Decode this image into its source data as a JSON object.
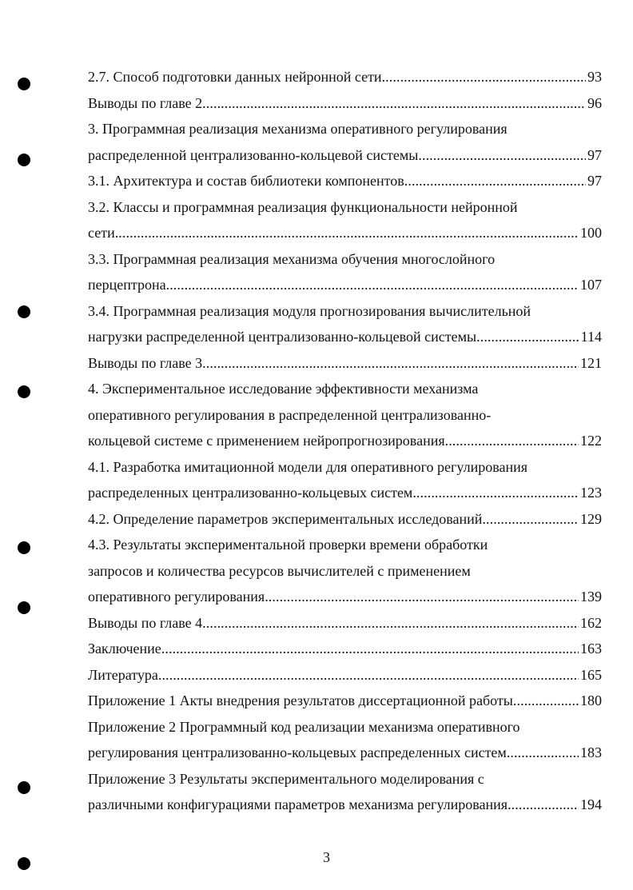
{
  "toc": [
    {
      "lines": [
        "2.7. Способ подготовки данных нейронной сети"
      ],
      "page": "93"
    },
    {
      "lines": [
        "Выводы по главе 2"
      ],
      "page": "96"
    },
    {
      "lines": [
        "3. Программная реализация механизма оперативного регулирования",
        "распределенной централизованно-кольцевой системы"
      ],
      "page": "97"
    },
    {
      "lines": [
        "3.1. Архитектура и состав библиотеки компонентов"
      ],
      "page": "97"
    },
    {
      "lines": [
        "3.2. Классы и программная реализация функциональности нейронной",
        "сети"
      ],
      "page": "100"
    },
    {
      "lines": [
        "3.3. Программная реализация механизма обучения многослойного",
        "перцептрона"
      ],
      "page": "107"
    },
    {
      "lines": [
        "3.4. Программная реализация модуля прогнозирования вычислительной",
        "нагрузки распределенной централизованно-кольцевой системы"
      ],
      "page": "114"
    },
    {
      "lines": [
        "Выводы по главе 3"
      ],
      "page": "121"
    },
    {
      "lines": [
        "4. Экспериментальное исследование эффективности механизма",
        "оперативного регулирования в распределенной централизованно-",
        "кольцевой системе с применением нейропрогнозирования"
      ],
      "page": "122"
    },
    {
      "lines": [
        "4.1. Разработка имитационной модели для оперативного регулирования",
        "распределенных централизованно-кольцевых систем"
      ],
      "page": "123"
    },
    {
      "lines": [
        "4.2. Определение параметров экспериментальных исследований"
      ],
      "page": "129"
    },
    {
      "lines": [
        "4.3. Результаты экспериментальной проверки времени обработки",
        "запросов и количества ресурсов вычислителей с применением",
        "оперативного регулирования"
      ],
      "page": "139"
    },
    {
      "lines": [
        "Выводы по главе 4"
      ],
      "page": "162"
    },
    {
      "lines": [
        "Заключение"
      ],
      "page": "163"
    },
    {
      "lines": [
        "Литература"
      ],
      "page": "165"
    },
    {
      "lines": [
        "Приложение 1 Акты внедрения результатов диссертационной работы"
      ],
      "page": "180"
    },
    {
      "lines": [
        "Приложение 2 Программный код реализации механизма оперативного",
        "регулирования централизованно-кольцевых распределенных систем"
      ],
      "page": "183"
    },
    {
      "lines": [
        "Приложение 3 Результаты экспериментального моделирования с",
        "различными конфигурациями параметров механизма регулирования"
      ],
      "page": "194"
    }
  ],
  "page_number": "3"
}
